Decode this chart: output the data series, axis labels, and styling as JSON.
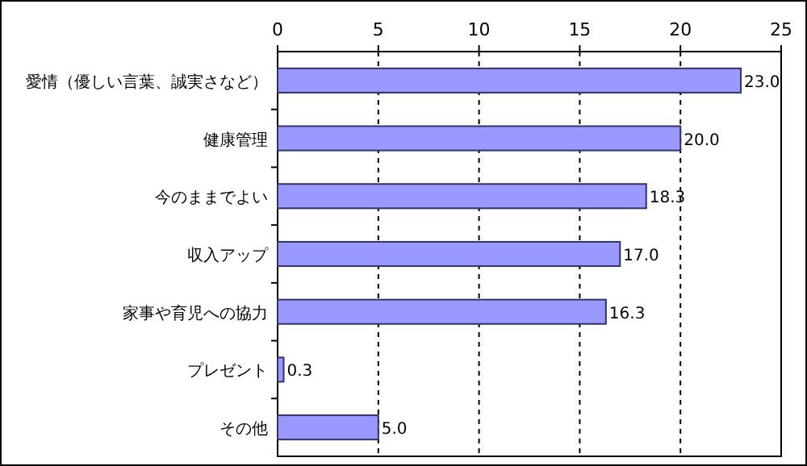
{
  "chart_data": {
    "type": "bar",
    "orientation": "horizontal",
    "categories": [
      "愛情（優しい言葉、誠実さなど）",
      "健康管理",
      "今のままでよい",
      "収入アップ",
      "家事や育児への協力",
      "プレゼント",
      "その他"
    ],
    "values": [
      23.0,
      20.0,
      18.3,
      17.0,
      16.3,
      0.3,
      5.0
    ],
    "value_labels": [
      "23.0",
      "20.0",
      "18.3",
      "17.0",
      "16.3",
      "0.3",
      "5.0"
    ],
    "color": "#9999ff",
    "xlim": [
      0,
      25
    ],
    "xticks": [
      0,
      5,
      10,
      15,
      20,
      25
    ],
    "grid": "x"
  }
}
